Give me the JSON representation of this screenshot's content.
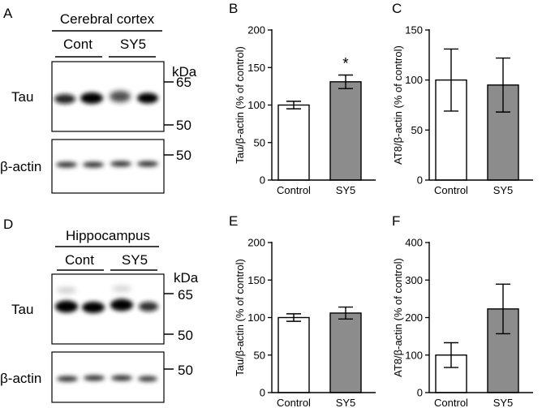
{
  "blots": [
    {
      "panel_letter": "A",
      "region": "Cerebral cortex",
      "groups": [
        "Cont",
        "SY5"
      ],
      "rows": [
        {
          "label": "Tau",
          "markers": [
            "65",
            "50"
          ]
        },
        {
          "label": "β-actin",
          "markers": [
            "50"
          ]
        }
      ],
      "kda_label": "kDa"
    },
    {
      "panel_letter": "D",
      "region": "Hippocampus",
      "groups": [
        "Cont",
        "SY5"
      ],
      "rows": [
        {
          "label": "Tau",
          "markers": [
            "65",
            "50"
          ]
        },
        {
          "label": "β-actin",
          "markers": [
            "50"
          ]
        }
      ],
      "kda_label": "kDa"
    }
  ],
  "chart_data": [
    {
      "panel_letter": "B",
      "type": "bar",
      "categories": [
        "Control",
        "SY5"
      ],
      "values": [
        100,
        131
      ],
      "errors": [
        5,
        9
      ],
      "fill_colors": [
        "#ffffff",
        "#8c8c8c"
      ],
      "ylabel": "Tau/β-actin (% of control)",
      "ylim": [
        0,
        200
      ],
      "yticks": [
        "0",
        "50",
        "100",
        "150",
        "200"
      ],
      "significance": "*"
    },
    {
      "panel_letter": "C",
      "type": "bar",
      "categories": [
        "Control",
        "SY5"
      ],
      "values": [
        100,
        95
      ],
      "errors": [
        31,
        27
      ],
      "fill_colors": [
        "#ffffff",
        "#8c8c8c"
      ],
      "ylabel": "AT8/β-actin (% of control)",
      "ylim": [
        0,
        150
      ],
      "yticks": [
        "0",
        "50",
        "100",
        "150"
      ],
      "significance": ""
    },
    {
      "panel_letter": "E",
      "type": "bar",
      "categories": [
        "Control",
        "SY5"
      ],
      "values": [
        100,
        106
      ],
      "errors": [
        5,
        8
      ],
      "fill_colors": [
        "#ffffff",
        "#8c8c8c"
      ],
      "ylabel": "Tau/β-actin (% of control)",
      "ylim": [
        0,
        200
      ],
      "yticks": [
        "0",
        "50",
        "100",
        "150",
        "200"
      ],
      "significance": ""
    },
    {
      "panel_letter": "F",
      "type": "bar",
      "categories": [
        "Control",
        "SY5"
      ],
      "values": [
        100,
        223
      ],
      "errors": [
        33,
        66
      ],
      "fill_colors": [
        "#ffffff",
        "#8c8c8c"
      ],
      "ylabel": "AT8/β-actin (% of control)",
      "ylim": [
        0,
        400
      ],
      "yticks": [
        "0",
        "100",
        "200",
        "300",
        "400"
      ],
      "significance": ""
    }
  ]
}
